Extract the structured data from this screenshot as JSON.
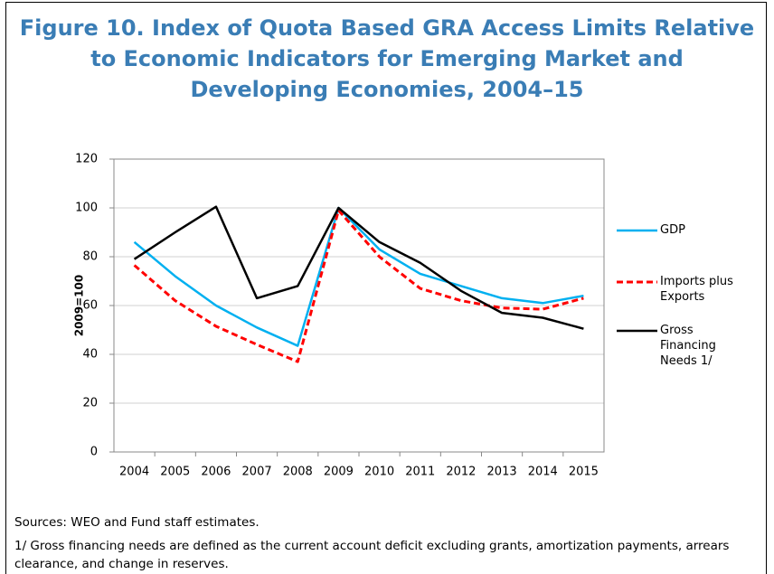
{
  "chart_data": {
    "type": "line",
    "title": "Figure 10. Index of Quota Based GRA Access Limits Relative to Economic Indicators for Emerging Market and Developing Economies, 2004–15",
    "y_label": "2009=100",
    "categories": [
      "2004",
      "2005",
      "2006",
      "2007",
      "2008",
      "2009",
      "2010",
      "2011",
      "2012",
      "2013",
      "2014",
      "2015"
    ],
    "series": [
      {
        "name": "GDP",
        "color": "#00b0f0",
        "dashed": false,
        "values": [
          86,
          72,
          60,
          51,
          43.5,
          100,
          83,
          73,
          68,
          63,
          61,
          64
        ]
      },
      {
        "name": "Imports plus Exports",
        "color": "#ff0000",
        "dashed": true,
        "values": [
          76.5,
          62,
          51.5,
          44,
          37,
          99,
          80,
          67,
          62,
          59,
          58.5,
          63
        ]
      },
      {
        "name": "Gross Financing Needs 1/",
        "color": "#000000",
        "dashed": false,
        "values": [
          79,
          90,
          100.5,
          63,
          68,
          100,
          86,
          77.5,
          66,
          57,
          55,
          50.5
        ]
      }
    ],
    "ylim": [
      0,
      120
    ],
    "yticks": [
      0,
      20,
      40,
      60,
      80,
      100,
      120
    ],
    "grid": true,
    "notes": [
      "Sources: WEO and Fund staff estimates.",
      "1/ Gross financing needs are defined as the current account deficit excluding grants, amortization payments, arrears clearance, and change in reserves."
    ]
  }
}
